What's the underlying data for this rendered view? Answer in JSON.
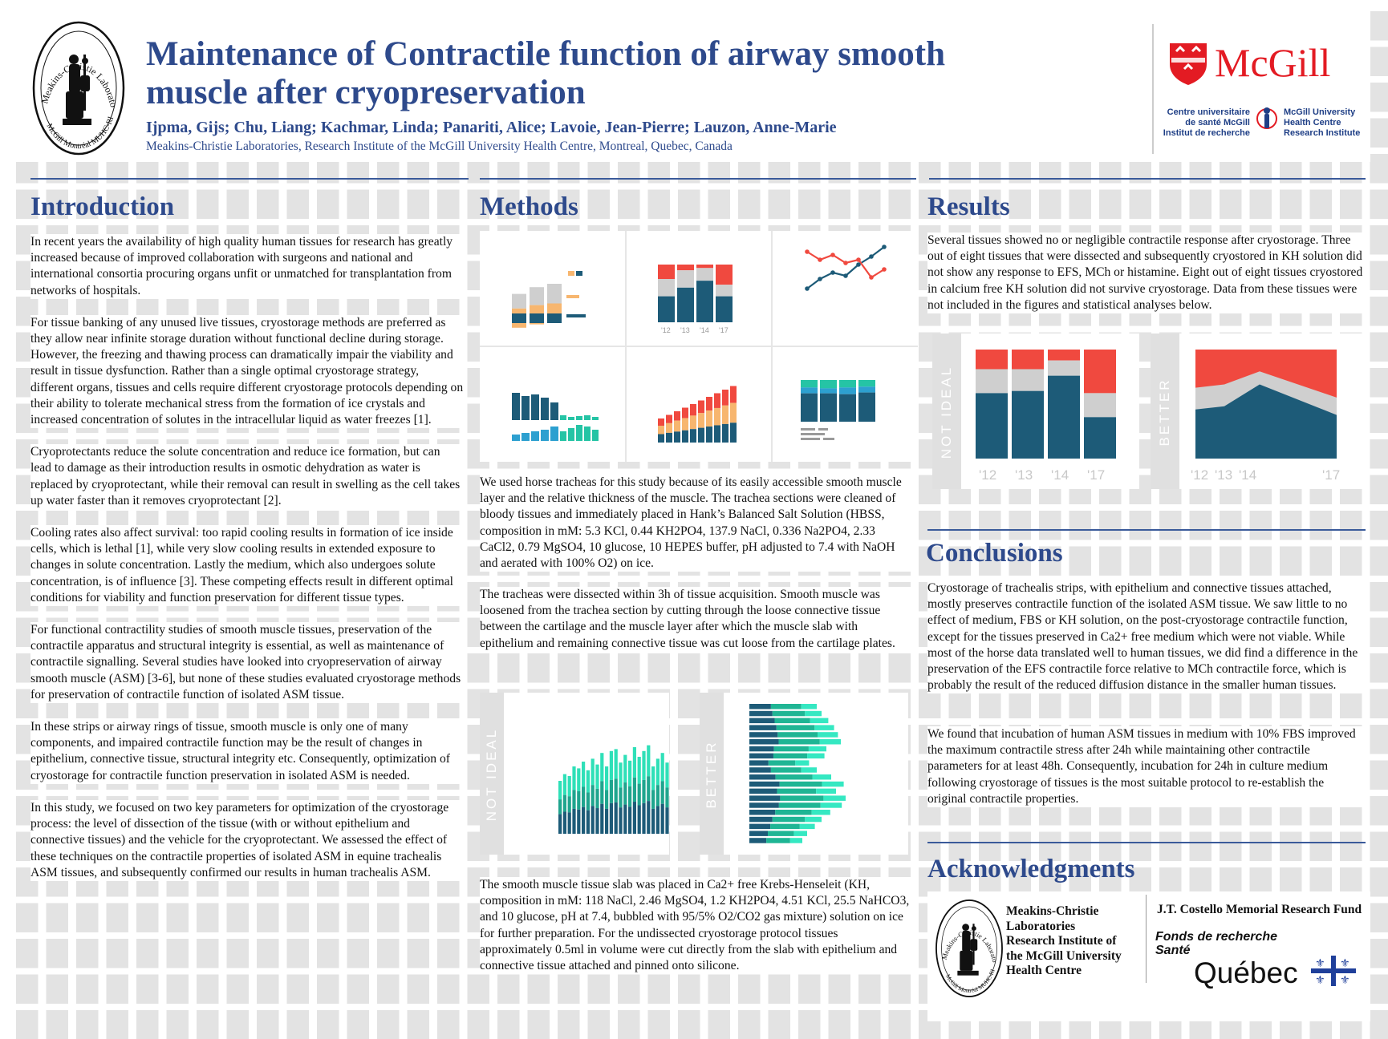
{
  "header": {
    "logo_text_top": "Meakins-Christie Laboratories",
    "logo_text_bottom": "McGill Montréal MUHC-RI",
    "title_line1": "Maintenance of Contractile function of airway smooth",
    "title_line2": "muscle after cryopreservation",
    "authors": "Ijpma, Gijs; Chu, Liang; Kachmar, Linda; Panariti, Alice; Lavoie, Jean-Pierre; Lauzon, Anne-Marie",
    "affiliation": "Meakins-Christie Laboratories, Research Institute of the McGill University Health Centre, Montreal, Quebec, Canada",
    "mcgill_wordmark": "McGill",
    "centre_fr_line1": "Centre universitaire",
    "centre_fr_line2": "de santé McGill",
    "centre_fr_line3": "Institut de recherche",
    "centre_en_line1": "McGill University",
    "centre_en_line2": "Health Centre",
    "centre_en_line3": "Research Institute"
  },
  "introduction": {
    "heading": "Introduction",
    "paragraphs": [
      "In recent years the availability of high quality human tissues for research has greatly increased because of improved collaboration with surgeons and national and international consortia procuring organs unfit or unmatched for transplantation from networks of hospitals.",
      "For tissue banking of any unused live tissues, cryostorage methods are preferred as they allow near infinite storage duration without functional decline during storage. However, the freezing and thawing process can dramatically impair the viability and result in tissue dysfunction. Rather than a single optimal cryostorage strategy, different organs, tissues and cells require different cryostorage protocols depending on their ability to tolerate mechanical stress from the formation of ice crystals and increased concentration of solutes in the intracellular liquid as water freezes [1].",
      "Cryoprotectants reduce the solute concentration and reduce ice formation, but can lead to damage as their introduction results in osmotic dehydration as water is replaced by cryoprotectant, while their removal can result in swelling as the cell takes up water faster than it removes cryoprotectant [2].",
      "Cooling rates also affect survival: too rapid cooling results in formation of ice inside cells, which is lethal [1], while very slow cooling results in extended exposure to changes in solute concentration.  Lastly the medium, which  also undergoes solute concentration, is of influence [3]. These competing effects result in different optimal conditions for viability and function preservation for different tissue types.",
      "For functional contractility studies of smooth muscle tissues, preservation of the contractile apparatus and structural integrity is essential, as well as maintenance of contractile signalling. Several studies have looked into cryopreservation of airway smooth muscle (ASM) [3-6], but none of these studies evaluated cryostorage methods for preservation of contractile function of isolated ASM tissue.",
      "In these strips or airway rings of tissue, smooth muscle is only one of many components, and impaired contractile function may be the result of changes in epithelium, connective tissue, structural integrity etc. Consequently, optimization of cryostorage for contractile function preservation in isolated ASM is needed.",
      "In this study, we focused on two key parameters for optimization of the cryostorage process: the level of dissection of the tissue (with or without epithelium and connective tissues) and the vehicle for the cryoprotectant. We assessed the effect of these techniques on the contractile properties of isolated ASM in equine trachealis ASM tissues, and subsequently confirmed our results in human trachealis ASM."
    ]
  },
  "methods": {
    "heading": "Methods",
    "icon_ticks": [
      "'12",
      "'13",
      "'14",
      "'17"
    ],
    "paragraph1": "We used horse tracheas for this study because of its easily accessible smooth muscle layer and the relative thickness of the muscle. The trachea sections were cleaned of bloody tissues and immediately placed in Hank’s Balanced Salt Solution (HBSS, composition in mM: 5.3 KCl, 0.44 KH2PO4, 137.9 NaCl, 0.336 Na2PO4, 2.33 CaCl2, 0.79 MgSO4, 10 glucose, 10 HEPES buffer, pH adjusted to 7.4 with NaOH and aerated with 100% O2) on ice.",
    "paragraph2": "The tracheas were dissected within 3h of tissue acquisition. Smooth muscle was loosened from the trachea section by cutting through the loose connective tissue between the cartilage and the muscle layer after which the muscle slab with epithelium and remaining connective tissue was cut loose from the cartilage plates.",
    "label_not_ideal": "NOT IDEAL",
    "label_better": "BETTER",
    "paragraph3": "The smooth muscle tissue slab was placed in Ca2+ free Krebs-Henseleit (KH, composition in mM: 118 NaCl, 2.46 MgSO4, 1.2 KH2PO4, 4.51 KCl, 25.5 NaHCO3, and 10 glucose, pH at 7.4, bubbled with 95/5% O2/CO2 gas mixture) solution on ice for further preparation. For the undissected cryostorage protocol tissues approximately 0.5ml in volume were cut directly from the slab with epithelium and connective tissue attached and pinned onto silicone."
  },
  "results": {
    "heading": "Results",
    "paragraph": "Several tissues showed no or negligible contractile response after cryostorage. Three out of eight tissues that were dissected and subsequently cryostored in KH solution did not show any response to EFS, MCh or histamine. Eight out of eight tissues cryostored in calcium free KH solution did not survive cryostorage. Data from these tissues were not included in the figures and statistical analyses below.",
    "label_not_ideal": "NOT IDEAL",
    "label_better": "BETTER",
    "ticks_not_ideal": [
      "'12",
      "'13",
      "'14",
      "'17"
    ],
    "ticks_better": [
      "'12",
      "'13",
      "'14",
      "'17"
    ]
  },
  "conclusions": {
    "heading": "Conclusions",
    "paragraph1": "Cryostorage of trachealis strips, with epithelium and connective tissues attached, mostly preserves contractile function of the isolated ASM tissue. We saw little to no effect of medium, FBS or KH solution, on the post-cryostorage contractile function, except for the tissues preserved in Ca2+ free medium which were not viable. While most of the horse data translated well to human tissues, we did find a difference in the preservation of the EFS contractile force relative to MCh contractile force, which is probably the result of the reduced diffusion distance in the smaller human tissues.",
    "paragraph2": "We found that incubation of human ASM tissues in medium with 10% FBS improved the maximum contractile stress after 24h while maintaining other contractile parameters for at least 48h. Consequently, incubation for 24h in culture medium following cryostorage of tissues is the most suitable protocol to re-establish the original contractile properties."
  },
  "acknowledgments": {
    "heading": "Acknowledgments",
    "logo_text_top": "Meakins-Christie Laboratories",
    "logo_text_bottom": "McGill Montréal MUHC-RI",
    "lab_line1": "Meakins-Christie",
    "lab_line2": "Laboratories",
    "lab_line3": "Research Institute of",
    "lab_line4": "the McGill University",
    "lab_line5": "Health Centre",
    "fund": "J.T. Costello Memorial Research Fund",
    "frq_line1": "Fonds de recherche",
    "frq_line2": "Santé",
    "quebec": "Québec"
  },
  "colors": {
    "title_blue": "#2e4a8c",
    "dark_teal": "#1d5b78",
    "red": "#f0493f",
    "light_grey": "#cfcfcf",
    "orange": "#f7b66f",
    "teal": "#25c4a5",
    "mcgill_red": "#e31b23"
  },
  "charts": {
    "not_ideal_bars": {
      "red": [
        0.18,
        0.18,
        0.1,
        0.4
      ],
      "grey": [
        0.22,
        0.2,
        0.14,
        0.22
      ],
      "dark": [
        0.6,
        0.62,
        0.76,
        0.38
      ]
    },
    "better_area": {
      "dark": [
        0.45,
        0.48,
        0.68,
        0.4
      ],
      "grey": [
        0.2,
        0.2,
        0.12,
        0.16
      ]
    },
    "bottom_not_ideal_heights": [
      0.55,
      0.62,
      0.6,
      0.7,
      0.68,
      0.75,
      0.66,
      0.78,
      0.72,
      0.84,
      0.7,
      0.86,
      0.88,
      0.74,
      0.82,
      0.76,
      0.9,
      0.8,
      0.86,
      0.92,
      0.7,
      0.78,
      0.84,
      0.74,
      0.86,
      0.8,
      0.88,
      0.76,
      0.9,
      0.72,
      0.8,
      0.7,
      0.74,
      0.66,
      0.62
    ],
    "bottom_better_rows": [
      0.7,
      0.75,
      0.82,
      0.88,
      0.92,
      0.95,
      0.8,
      0.78,
      0.62,
      0.7,
      0.85,
      0.98,
      0.9,
      1.0,
      0.96,
      0.84,
      0.75,
      0.68,
      0.6,
      0.55
    ]
  }
}
